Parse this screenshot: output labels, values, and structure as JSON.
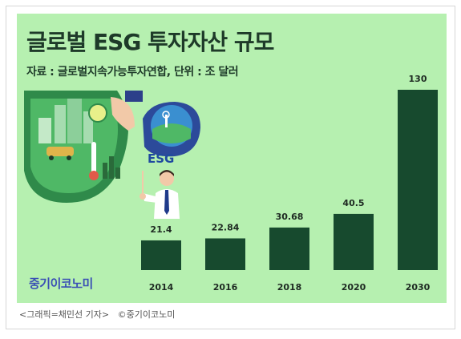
{
  "chart_data": {
    "type": "bar",
    "title": "글로벌 ESG 투자자산 규모",
    "subtitle": "자료 : 글로벌지속가능투자연합, 단위 : 조 달러",
    "categories": [
      "2014",
      "2016",
      "2018",
      "2020",
      "2030"
    ],
    "values": [
      21.4,
      22.84,
      30.68,
      40.5,
      130
    ],
    "value_labels": [
      "21.4",
      "22.84",
      "30.68",
      "40.5",
      "130"
    ],
    "xlabel": "",
    "ylabel": "",
    "ylim": [
      0,
      130
    ],
    "grid": false,
    "bar_color": "#174a2e"
  },
  "illustration": {
    "badge_text": "ESG"
  },
  "logo_text": "중기이코노미",
  "caption": "<그래픽=채민선 기자>   ©중기이코노미",
  "colors": {
    "background": "#b6f0b0",
    "bar": "#174a2e",
    "title": "#1e3a29",
    "logo": "#3a4fb5"
  }
}
